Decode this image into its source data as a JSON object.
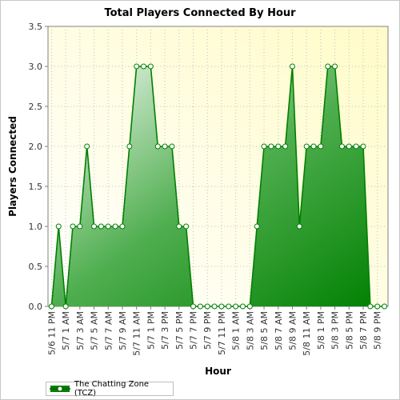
{
  "chart_data": {
    "type": "area",
    "title": "Total Players Connected By Hour",
    "xlabel": "Hour",
    "ylabel": "Players Connected",
    "ylim": [
      0,
      3.5
    ],
    "yticks": [
      "0.0",
      "0.5",
      "1.0",
      "1.5",
      "2.0",
      "2.5",
      "3.0",
      "3.5"
    ],
    "x_tick_labels": [
      "5/6 11 PM",
      "5/7 1 AM",
      "5/7 3 AM",
      "5/7 5 AM",
      "5/7 7 AM",
      "5/7 9 AM",
      "5/7 11 AM",
      "5/7 1 PM",
      "5/7 3 PM",
      "5/7 5 PM",
      "5/7 7 PM",
      "5/7 9 PM",
      "5/7 11 PM",
      "5/8 1 AM",
      "5/8 3 AM",
      "5/8 5 AM",
      "5/8 7 AM",
      "5/8 9 AM",
      "5/8 11 AM",
      "5/8 1 PM",
      "5/8 3 PM",
      "5/8 5 PM",
      "5/8 7 PM",
      "5/8 9 PM"
    ],
    "grid": true,
    "legend_position": "bottom-left",
    "series": [
      {
        "name": "The Chatting Zone (TCZ)",
        "color": "#008000",
        "values": [
          0,
          1,
          0,
          1,
          1,
          2,
          1,
          1,
          1,
          1,
          1,
          2,
          3,
          3,
          3,
          2,
          2,
          2,
          1,
          1,
          0,
          0,
          0,
          0,
          0,
          0,
          0,
          0,
          0,
          1,
          2,
          2,
          2,
          2,
          3,
          1,
          2,
          2,
          2,
          3,
          3,
          2,
          2,
          2,
          2,
          0,
          0,
          0
        ]
      }
    ]
  }
}
